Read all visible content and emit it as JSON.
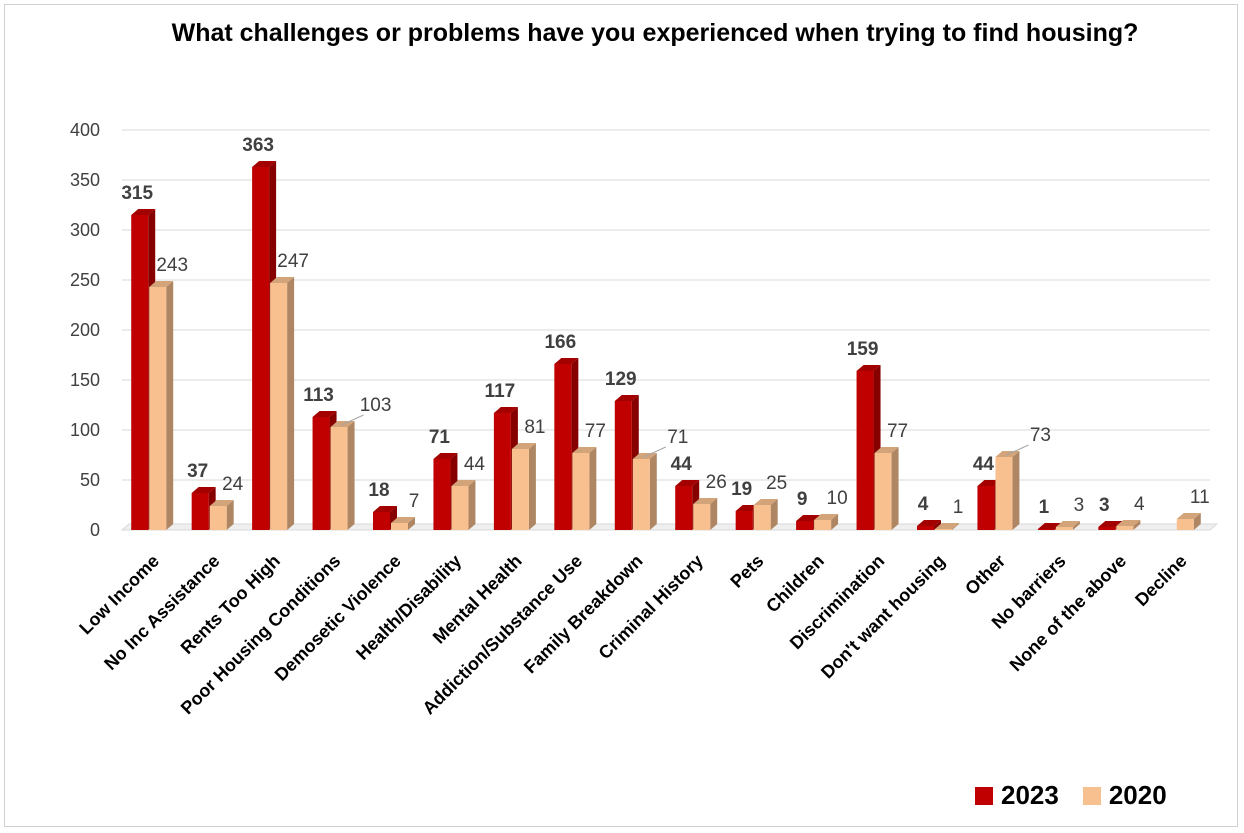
{
  "chart_data": {
    "type": "bar",
    "title": "What challenges or problems have you experienced when trying to find housing?",
    "categories": [
      "Low Income",
      "No Inc Assistance",
      "Rents Too High",
      "Poor Housing Conditions",
      "Demosetic Violence",
      "Health/Disability",
      "Mental Health",
      "Addiction/Substance Use",
      "Family Breakdown",
      "Criminal History",
      "Pets",
      "Children",
      "Discrimination",
      "Don't want housing",
      "Other",
      "No barriers",
      "None of the above",
      "Decline"
    ],
    "series": [
      {
        "name": "2023",
        "color": "#c00000",
        "values": [
          315,
          37,
          363,
          113,
          18,
          71,
          117,
          166,
          129,
          44,
          19,
          9,
          159,
          4,
          44,
          1,
          3,
          null
        ]
      },
      {
        "name": "2020",
        "color": "#f8c08e",
        "values": [
          243,
          24,
          247,
          103,
          7,
          44,
          81,
          77,
          71,
          26,
          25,
          10,
          77,
          1,
          73,
          3,
          4,
          11
        ]
      }
    ],
    "ylim": [
      0,
      400
    ],
    "yticks": [
      0,
      50,
      100,
      150,
      200,
      250,
      300,
      350,
      400
    ],
    "grid": true,
    "legend_position": "bottom-right"
  }
}
